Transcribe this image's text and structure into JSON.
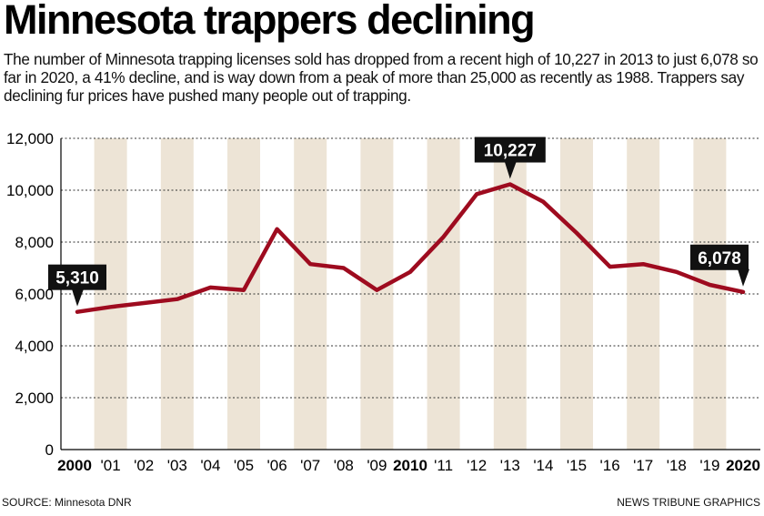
{
  "title": "Minnesota trappers declining",
  "subtitle": "The number of Minnesota trapping licenses sold has dropped from a recent high of 10,227 in 2013 to just 6,078 so far in 2020, a 41% decline, and is way down from a peak of more than 25,000 as recently as 1988. Trappers say declining fur prices have pushed many people out of trapping.",
  "source": "SOURCE: Minnesota DNR",
  "credit": "NEWS TRIBUNE GRAPHICS",
  "colors": {
    "line": "#9e0b1f",
    "band": "#ede4d6",
    "callout": "#111111",
    "grid": "#333333"
  },
  "chart_data": {
    "type": "line",
    "title": "Minnesota trappers declining",
    "xlabel": "",
    "ylabel": "",
    "x": [
      2000,
      2001,
      2002,
      2003,
      2004,
      2005,
      2006,
      2007,
      2008,
      2009,
      2010,
      2011,
      2012,
      2013,
      2014,
      2015,
      2016,
      2017,
      2018,
      2019,
      2020
    ],
    "x_tick_labels": [
      "2000",
      "'01",
      "'02",
      "'03",
      "'04",
      "'05",
      "'06",
      "'07",
      "'08",
      "'09",
      "2010",
      "'11",
      "'12",
      "'13",
      "'14",
      "'15",
      "'16",
      "'17",
      "'18",
      "'19",
      "2020"
    ],
    "major_ticks": [
      "2000",
      "2010",
      "2020"
    ],
    "series": [
      {
        "name": "Trapping licenses sold",
        "values": [
          5310,
          5500,
          5650,
          5800,
          6250,
          6150,
          8500,
          7150,
          7000,
          6150,
          6850,
          8200,
          9850,
          10227,
          9550,
          8350,
          7050,
          7150,
          6850,
          6350,
          6078
        ]
      }
    ],
    "ylim": [
      0,
      12000
    ],
    "y_ticks": [
      0,
      2000,
      4000,
      6000,
      8000,
      10000,
      12000
    ],
    "y_tick_labels": [
      "0",
      "2,000",
      "4,000",
      "6,000",
      "8,000",
      "10,000",
      "12,000"
    ],
    "grid": "horizontal dotted",
    "annotations": [
      {
        "x": 2000,
        "value": 5310,
        "label": "5,310"
      },
      {
        "x": 2013,
        "value": 10227,
        "label": "10,227"
      },
      {
        "x": 2020,
        "value": 6078,
        "label": "6,078"
      }
    ]
  }
}
